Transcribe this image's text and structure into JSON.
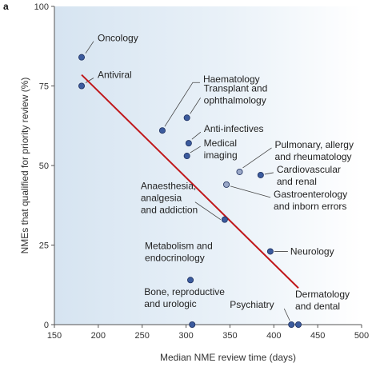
{
  "panel_label": "a",
  "chart_data": {
    "type": "scatter",
    "xlabel": "Median NME review time (days)",
    "ylabel": "NMEs that qualified for priority review (%)",
    "xlim": [
      150,
      500
    ],
    "ylim": [
      0,
      100
    ],
    "xticks": [
      150,
      200,
      250,
      300,
      350,
      400,
      450,
      500
    ],
    "yticks": [
      0,
      25,
      50,
      75,
      100
    ],
    "grid": false,
    "background": "blue-to-white gradient",
    "colors": {
      "point_fill": "#3b5b9e",
      "point_fill_light": "#9aa8c8",
      "trend_line": "#c0171a",
      "bg_left": "#d6e4f1",
      "bg_right": "#ffffff"
    },
    "points": [
      {
        "label": "Oncology",
        "x": 181,
        "y": 84
      },
      {
        "label": "Antiviral",
        "x": 181,
        "y": 75
      },
      {
        "label": "Haematology",
        "x": 273,
        "y": 61
      },
      {
        "label": "Transplant and ophthalmology",
        "x": 301,
        "y": 65
      },
      {
        "label": "Anti-infectives",
        "x": 303,
        "y": 57
      },
      {
        "label": "Medical imaging",
        "x": 301,
        "y": 53
      },
      {
        "label": "Pulmonary, allergy and rheumatology",
        "x": 361,
        "y": 48
      },
      {
        "label": "Cardiovascular and renal",
        "x": 385,
        "y": 47
      },
      {
        "label": "Gastroenterology and inborn errors",
        "x": 346,
        "y": 44
      },
      {
        "label": "Anaesthesia, analgesia and addiction",
        "x": 344,
        "y": 33
      },
      {
        "label": "Neurology",
        "x": 396,
        "y": 23
      },
      {
        "label": "Metabolism and endocrinology",
        "x": 305,
        "y": 14
      },
      {
        "label": "Bone, reproductive and urologic",
        "x": 307,
        "y": 0
      },
      {
        "label": "Psychiatry",
        "x": 420,
        "y": 0
      },
      {
        "label": "Dermatology and dental",
        "x": 428,
        "y": 0
      }
    ],
    "trend_line": {
      "x": [
        181,
        428
      ],
      "y": [
        78.5,
        11.5
      ]
    }
  }
}
